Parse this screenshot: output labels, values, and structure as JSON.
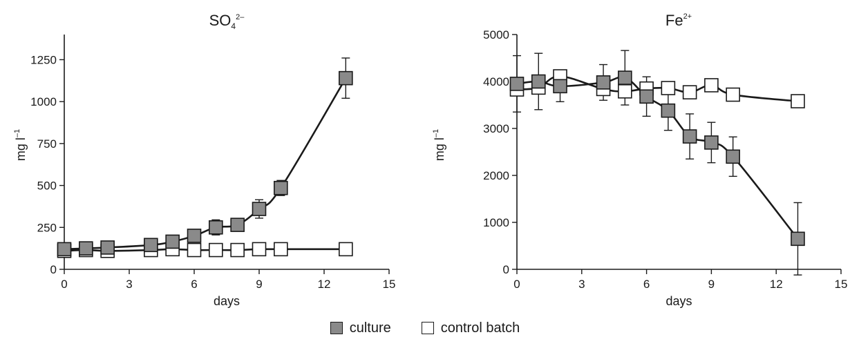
{
  "chart_data": [
    {
      "type": "line",
      "title": "SO",
      "title_sub": "4",
      "title_sup": "2–",
      "xlabel": "days",
      "ylabel": "mg l",
      "ylabel_sup": "–1",
      "xlim": [
        0,
        15
      ],
      "ylim": [
        0,
        1400
      ],
      "xticks": [
        "0",
        "3",
        "6",
        "9",
        "12",
        "15"
      ],
      "xtick_values": [
        0,
        3,
        6,
        9,
        12,
        15
      ],
      "yticks": [
        "0",
        "250",
        "500",
        "750",
        "1000",
        "1250"
      ],
      "ytick_values": [
        0,
        250,
        500,
        750,
        1000,
        1250
      ],
      "grid": false,
      "series": [
        {
          "name": "culture",
          "marker": "filled-square",
          "color": "#8a8a8a",
          "points": [
            {
              "x": 0,
              "y": 120
            },
            {
              "x": 1,
              "y": 125
            },
            {
              "x": 2,
              "y": 130
            },
            {
              "x": 4,
              "y": 145
            },
            {
              "x": 5,
              "y": 165
            },
            {
              "x": 6,
              "y": 200
            },
            {
              "x": 7,
              "y": 250,
              "err": 45
            },
            {
              "x": 8,
              "y": 265
            },
            {
              "x": 9,
              "y": 360,
              "err": 55
            },
            {
              "x": 10,
              "y": 485,
              "err": 45
            },
            {
              "x": 13,
              "y": 1140,
              "err": 120
            }
          ]
        },
        {
          "name": "control batch",
          "marker": "open-square",
          "color": "#ffffff",
          "points": [
            {
              "x": 0,
              "y": 110
            },
            {
              "x": 1,
              "y": 115
            },
            {
              "x": 2,
              "y": 110
            },
            {
              "x": 4,
              "y": 115
            },
            {
              "x": 5,
              "y": 120
            },
            {
              "x": 6,
              "y": 115
            },
            {
              "x": 7,
              "y": 115
            },
            {
              "x": 8,
              "y": 115
            },
            {
              "x": 9,
              "y": 120
            },
            {
              "x": 10,
              "y": 120
            },
            {
              "x": 13,
              "y": 120
            }
          ]
        }
      ]
    },
    {
      "type": "line",
      "title": "Fe",
      "title_sub": "",
      "title_sup": "2+",
      "xlabel": "days",
      "ylabel": "mg l",
      "ylabel_sup": "–1",
      "xlim": [
        0,
        15
      ],
      "ylim": [
        0,
        5000
      ],
      "xticks": [
        "0",
        "3",
        "6",
        "9",
        "12",
        "15"
      ],
      "xtick_values": [
        0,
        3,
        6,
        9,
        12,
        15
      ],
      "yticks": [
        "0",
        "1000",
        "2000",
        "3000",
        "4000",
        "5000"
      ],
      "ytick_values": [
        0,
        1000,
        2000,
        3000,
        4000,
        5000
      ],
      "grid": false,
      "series": [
        {
          "name": "culture",
          "marker": "filled-square",
          "color": "#8a8a8a",
          "points": [
            {
              "x": 0,
              "y": 3950,
              "err": 600
            },
            {
              "x": 1,
              "y": 4000,
              "err": 600
            },
            {
              "x": 2,
              "y": 3900,
              "err": 330
            },
            {
              "x": 4,
              "y": 3980,
              "err": 380
            },
            {
              "x": 5,
              "y": 4080,
              "err": 580
            },
            {
              "x": 6,
              "y": 3680,
              "err": 420
            },
            {
              "x": 7,
              "y": 3380,
              "err": 420
            },
            {
              "x": 8,
              "y": 2830,
              "err": 480
            },
            {
              "x": 9,
              "y": 2700,
              "err": 430
            },
            {
              "x": 10,
              "y": 2400,
              "err": 420
            },
            {
              "x": 13,
              "y": 650,
              "err": 770
            }
          ]
        },
        {
          "name": "control batch",
          "marker": "open-square",
          "color": "#ffffff",
          "points": [
            {
              "x": 0,
              "y": 3830
            },
            {
              "x": 1,
              "y": 3870
            },
            {
              "x": 2,
              "y": 4110
            },
            {
              "x": 4,
              "y": 3840
            },
            {
              "x": 5,
              "y": 3790
            },
            {
              "x": 6,
              "y": 3850
            },
            {
              "x": 7,
              "y": 3860
            },
            {
              "x": 8,
              "y": 3770
            },
            {
              "x": 9,
              "y": 3920
            },
            {
              "x": 10,
              "y": 3720
            },
            {
              "x": 13,
              "y": 3580
            }
          ]
        }
      ]
    }
  ],
  "legend": {
    "placement": "bottom-center",
    "items": [
      {
        "label": "culture",
        "color": "#8a8a8a"
      },
      {
        "label": "control batch",
        "color": "#ffffff"
      }
    ]
  }
}
